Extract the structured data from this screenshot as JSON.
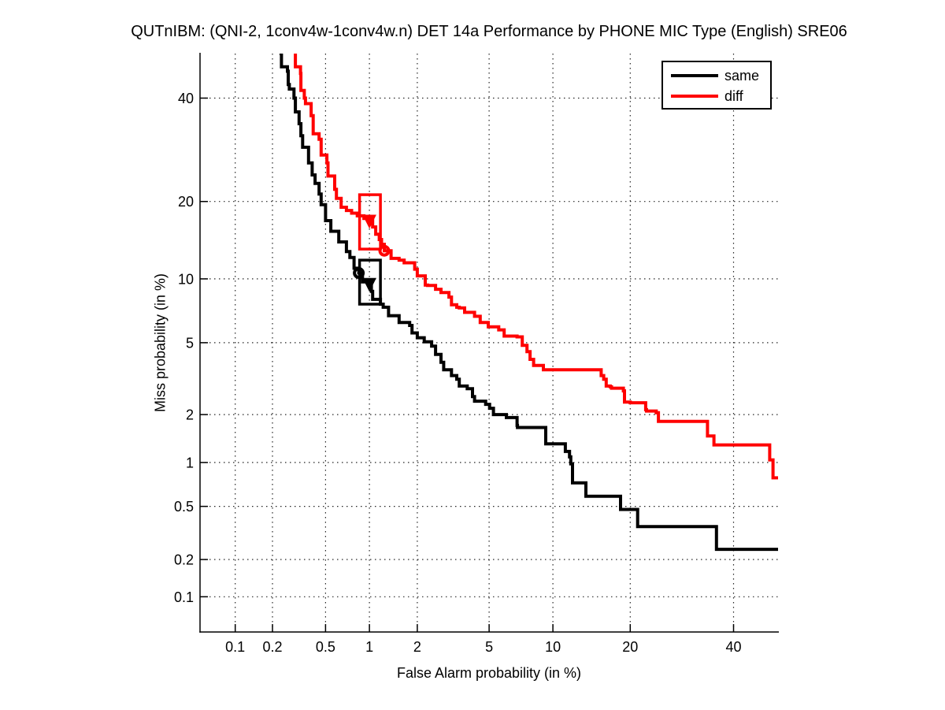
{
  "title": "QUTnIBM: (QNI-2, 1conv4w-1conv4w.n) DET 14a Performance by PHONE MIC Type (English) SRE06",
  "axes": {
    "x_label": "False Alarm probability (in %)",
    "y_label": "Miss probability (in %)",
    "x_tick_labels": [
      "0.1",
      "0.2",
      "0.5",
      "1",
      "2",
      "5",
      "10",
      "20",
      "40"
    ],
    "y_tick_labels": [
      "0.1",
      "0.2",
      "0.5",
      "1",
      "2",
      "5",
      "10",
      "20",
      "40"
    ]
  },
  "legend": {
    "position": "northeast",
    "items": [
      {
        "label": "same",
        "color": "#000000"
      },
      {
        "label": "diff",
        "color": "#ff0000"
      }
    ]
  },
  "chart_data": {
    "type": "line",
    "subtype": "DET curve",
    "x_scale": "probit",
    "y_scale": "probit",
    "xlabel": "False Alarm probability (in %)",
    "ylabel": "Miss probability (in %)",
    "x_limits_pct": [
      0.05,
      50
    ],
    "y_limits_pct": [
      0.05,
      50
    ],
    "x_ticks_pct": [
      0.1,
      0.2,
      0.5,
      1,
      2,
      5,
      10,
      20,
      40
    ],
    "y_ticks_pct": [
      0.1,
      0.2,
      0.5,
      1,
      2,
      5,
      10,
      20,
      40
    ],
    "grid": true,
    "line_width": 4,
    "series": [
      {
        "name": "same",
        "color": "#000000",
        "points_fa_miss_pct": [
          [
            0.227,
            50
          ],
          [
            0.235,
            47
          ],
          [
            0.261,
            46
          ],
          [
            0.265,
            43
          ],
          [
            0.27,
            42
          ],
          [
            0.293,
            40
          ],
          [
            0.3,
            37
          ],
          [
            0.32,
            34.5
          ],
          [
            0.33,
            32
          ],
          [
            0.34,
            29.7
          ],
          [
            0.376,
            26.7
          ],
          [
            0.4,
            24.5
          ],
          [
            0.42,
            23
          ],
          [
            0.449,
            21.2
          ],
          [
            0.465,
            19.5
          ],
          [
            0.5,
            17.1
          ],
          [
            0.545,
            15.6
          ],
          [
            0.62,
            14.2
          ],
          [
            0.7,
            13
          ],
          [
            0.74,
            12.3
          ],
          [
            0.79,
            11.1
          ],
          [
            0.85,
            10.6
          ],
          [
            0.9,
            9.7
          ],
          [
            1.0,
            9.5
          ],
          [
            1.03,
            8.8
          ],
          [
            1.05,
            8.1
          ],
          [
            1.18,
            7.7
          ],
          [
            1.23,
            7.45
          ],
          [
            1.33,
            6.8
          ],
          [
            1.55,
            6.3
          ],
          [
            1.8,
            6.1
          ],
          [
            1.86,
            5.6
          ],
          [
            2.0,
            5.3
          ],
          [
            2.2,
            5.05
          ],
          [
            2.43,
            4.8
          ],
          [
            2.56,
            4.35
          ],
          [
            2.75,
            3.95
          ],
          [
            2.85,
            3.6
          ],
          [
            3.15,
            3.35
          ],
          [
            3.37,
            3.2
          ],
          [
            3.48,
            2.93
          ],
          [
            3.84,
            2.83
          ],
          [
            4.1,
            2.55
          ],
          [
            4.2,
            2.4
          ],
          [
            4.8,
            2.3
          ],
          [
            5.03,
            2.18
          ],
          [
            5.26,
            2.0
          ],
          [
            6.1,
            1.92
          ],
          [
            6.87,
            1.72
          ],
          [
            6.9,
            1.67
          ],
          [
            9.2,
            1.67
          ],
          [
            9.3,
            1.32
          ],
          [
            11.05,
            1.32
          ],
          [
            11.3,
            1.18
          ],
          [
            11.76,
            1.09
          ],
          [
            11.9,
            0.98
          ],
          [
            12.1,
            0.73
          ],
          [
            13.6,
            0.73
          ],
          [
            13.7,
            0.59
          ],
          [
            18.3,
            0.59
          ],
          [
            18.5,
            0.475
          ],
          [
            21.0,
            0.475
          ],
          [
            21.2,
            0.356
          ],
          [
            36.0,
            0.356
          ],
          [
            36.3,
            0.24
          ],
          [
            50,
            0.24
          ]
        ]
      },
      {
        "name": "diff",
        "color": "#ff0000",
        "points_fa_miss_pct": [
          [
            0.293,
            50
          ],
          [
            0.3,
            47
          ],
          [
            0.328,
            45.5
          ],
          [
            0.33,
            41.7
          ],
          [
            0.35,
            40
          ],
          [
            0.357,
            38.8
          ],
          [
            0.393,
            36.2
          ],
          [
            0.407,
            32.4
          ],
          [
            0.449,
            31.3
          ],
          [
            0.465,
            28.2
          ],
          [
            0.511,
            26.7
          ],
          [
            0.52,
            24.3
          ],
          [
            0.58,
            22
          ],
          [
            0.597,
            20.5
          ],
          [
            0.644,
            19.1
          ],
          [
            0.7,
            18.6
          ],
          [
            0.76,
            18.2
          ],
          [
            0.83,
            17.8
          ],
          [
            0.92,
            17.4
          ],
          [
            1.0,
            17.1
          ],
          [
            1.05,
            16.2
          ],
          [
            1.1,
            15.2
          ],
          [
            1.16,
            14.5
          ],
          [
            1.2,
            13.9
          ],
          [
            1.25,
            13.1
          ],
          [
            1.38,
            12.2
          ],
          [
            1.55,
            12.0
          ],
          [
            1.665,
            11.7
          ],
          [
            1.93,
            11.0
          ],
          [
            2.0,
            10.3
          ],
          [
            2.23,
            9.4
          ],
          [
            2.3,
            9.35
          ],
          [
            2.56,
            9.0
          ],
          [
            2.75,
            8.7
          ],
          [
            3.05,
            8.3
          ],
          [
            3.15,
            7.65
          ],
          [
            3.37,
            7.45
          ],
          [
            3.48,
            7.4
          ],
          [
            3.72,
            7.05
          ],
          [
            4.2,
            6.75
          ],
          [
            4.5,
            6.3
          ],
          [
            4.95,
            6.0
          ],
          [
            5.59,
            5.8
          ],
          [
            5.95,
            5.4
          ],
          [
            6.87,
            5.35
          ],
          [
            7.27,
            4.85
          ],
          [
            7.65,
            4.5
          ],
          [
            7.9,
            4.1
          ],
          [
            8.2,
            3.8
          ],
          [
            9.08,
            3.6
          ],
          [
            15.15,
            3.6
          ],
          [
            15.7,
            3.35
          ],
          [
            16.05,
            3.2
          ],
          [
            16.4,
            2.93
          ],
          [
            16.97,
            2.9
          ],
          [
            17.15,
            2.85
          ],
          [
            18.93,
            2.75
          ],
          [
            19.1,
            2.37
          ],
          [
            20,
            2.35
          ],
          [
            22.56,
            2.14
          ],
          [
            22.7,
            2.1
          ],
          [
            24.4,
            2.05
          ],
          [
            24.8,
            1.82
          ],
          [
            33.8,
            1.82
          ],
          [
            34.4,
            1.48
          ],
          [
            35.76,
            1.3
          ],
          [
            47.66,
            1.3
          ],
          [
            48.1,
            1.04
          ],
          [
            48.85,
            0.79
          ],
          [
            50,
            0.78
          ]
        ]
      }
    ],
    "markers": [
      {
        "series": "same",
        "shape": "circle",
        "fa_pct": 0.85,
        "miss_pct": 10.6
      },
      {
        "series": "same",
        "shape": "triangle-down",
        "fa_pct": 1.0,
        "miss_pct": 9.5
      },
      {
        "series": "same",
        "shape": "rect",
        "fa_range_pct": [
          0.86,
          1.18
        ],
        "miss_range_pct": [
          7.7,
          12.0
        ]
      },
      {
        "series": "diff",
        "shape": "circle",
        "fa_pct": 1.25,
        "miss_pct": 13.1
      },
      {
        "series": "diff",
        "shape": "triangle-down",
        "fa_pct": 1.0,
        "miss_pct": 17.1
      },
      {
        "series": "diff",
        "shape": "rect",
        "fa_range_pct": [
          0.86,
          1.18
        ],
        "miss_range_pct": [
          13.3,
          21.1
        ]
      }
    ]
  }
}
